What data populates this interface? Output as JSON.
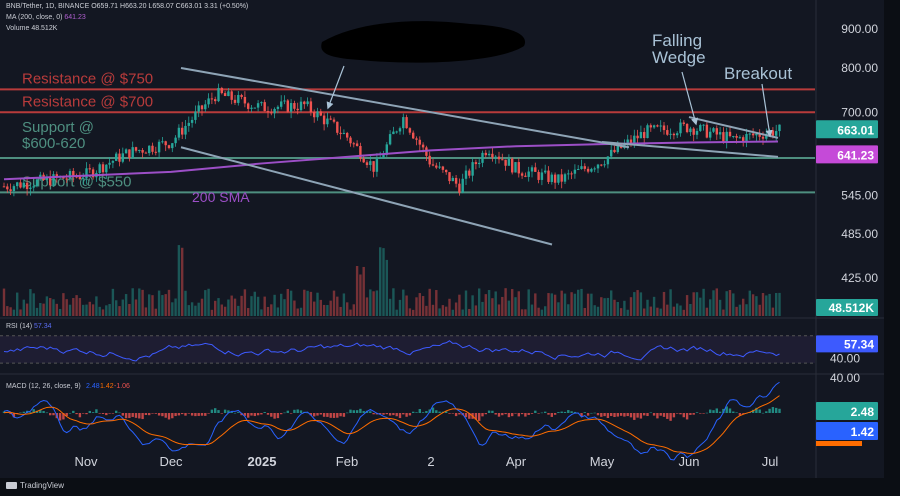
{
  "header": {
    "symbol_line": "BNB/Tether, 1D, BINANCE",
    "ohlc": "O659.71 H663.20 L658.07 C663.01 3.31 (+0.50%)",
    "ma_line": "MA (200, close, 0)",
    "ma_value": "641.23",
    "volume_line": "Volume",
    "volume_value": "48.512K"
  },
  "footer": {
    "brand": "TradingView"
  },
  "colors": {
    "background": "#131722",
    "up": "#26a69a",
    "down": "#ef5350",
    "sma": "#9c4fc7",
    "resistance": "#b83b3b",
    "support": "#4e8f80",
    "wedge": "#8ea4b6",
    "rsi": "#3d5afe",
    "macd_line": "#2962ff",
    "signal_line": "#ff6d00",
    "annotation": "#a9c2d6"
  },
  "chart_data": [
    {
      "type": "candlestick",
      "title": "BNB/Tether 1D",
      "x_labels": [
        "Nov",
        "Dec",
        "2025",
        "Feb",
        "2",
        "Apr",
        "May",
        "Jun",
        "Jul"
      ],
      "y_axis_ticks": [
        "900.00",
        "800.00",
        "700.00",
        "545.00",
        "485.00",
        "425.00"
      ],
      "ylim": [
        400,
        930
      ],
      "scale": "log",
      "last_price": "663.01",
      "sma_200_value": "641.23",
      "price_path": [
        {
          "month": "Oct",
          "price": 560
        },
        {
          "month": "Nov",
          "price": 580
        },
        {
          "month": "Nov",
          "price": 620
        },
        {
          "month": "Dec",
          "price": 640
        },
        {
          "month": "Dec",
          "price": 740
        },
        {
          "month": "2025",
          "price": 710
        },
        {
          "month": "2025",
          "price": 715
        },
        {
          "month": "Feb",
          "price": 650
        },
        {
          "month": "Feb",
          "price": 590
        },
        {
          "month": "Feb",
          "price": 690
        },
        {
          "month": "2",
          "price": 600
        },
        {
          "month": "2",
          "price": 560
        },
        {
          "month": "2",
          "price": 630
        },
        {
          "month": "Apr",
          "price": 590
        },
        {
          "month": "Apr",
          "price": 570
        },
        {
          "month": "May",
          "price": 605
        },
        {
          "month": "May",
          "price": 660
        },
        {
          "month": "Jun",
          "price": 670
        },
        {
          "month": "Jun",
          "price": 645
        },
        {
          "month": "Jul",
          "price": 663
        }
      ],
      "sma_path": [
        {
          "month": "Oct",
          "price": 572
        },
        {
          "month": "Dec",
          "price": 585
        },
        {
          "month": "2025",
          "price": 600
        },
        {
          "month": "Feb",
          "price": 612
        },
        {
          "month": "2",
          "price": 624
        },
        {
          "month": "Apr",
          "price": 632
        },
        {
          "month": "May",
          "price": 636
        },
        {
          "month": "Jun",
          "price": 639
        },
        {
          "month": "Jul",
          "price": 641
        }
      ],
      "levels": [
        {
          "label": "Resistance @ $750",
          "price": 750,
          "kind": "resistance"
        },
        {
          "label": "Resistance @ $700",
          "price": 700,
          "kind": "resistance"
        },
        {
          "label": "Support @\n$600-620",
          "price": 610,
          "kind": "support"
        },
        {
          "label": "Support @ $550",
          "price": 550,
          "kind": "support"
        }
      ],
      "annotations": [
        {
          "text": "200 SMA"
        },
        {
          "text": "Falling\nWedge"
        },
        {
          "text": "Breakout"
        }
      ],
      "wedge_lines": [
        {
          "from": {
            "month": "Dec",
            "price": 800
          },
          "to": {
            "month": "Jun",
            "price": 630
          }
        },
        {
          "from": {
            "month": "Dec",
            "price": 630
          },
          "to": {
            "month": "Apr",
            "price": 470
          }
        },
        {
          "from": {
            "month": "Jun",
            "price": 690
          },
          "to": {
            "month": "Jul",
            "price": 648
          }
        },
        {
          "from": {
            "month": "May",
            "price": 640
          },
          "to": {
            "month": "Jul",
            "price": 612
          }
        }
      ]
    },
    {
      "type": "bar",
      "title": "Volume",
      "last_value": "48.512K"
    },
    {
      "type": "line",
      "title": "RSI (14)",
      "legend_value": "57.34",
      "current_value": "57.34",
      "y_axis_ticks": [
        "40.00"
      ],
      "ylim": [
        20,
        90
      ],
      "guide_levels": [
        70,
        30
      ]
    },
    {
      "type": "bar",
      "title": "MACD (12, 26, close, 9)",
      "legend_values": [
        "2.48",
        "1.42",
        "-1.06"
      ],
      "y_axis_ticks": [
        "40.00"
      ],
      "current_values": [
        "2.48",
        "1.42"
      ]
    }
  ]
}
